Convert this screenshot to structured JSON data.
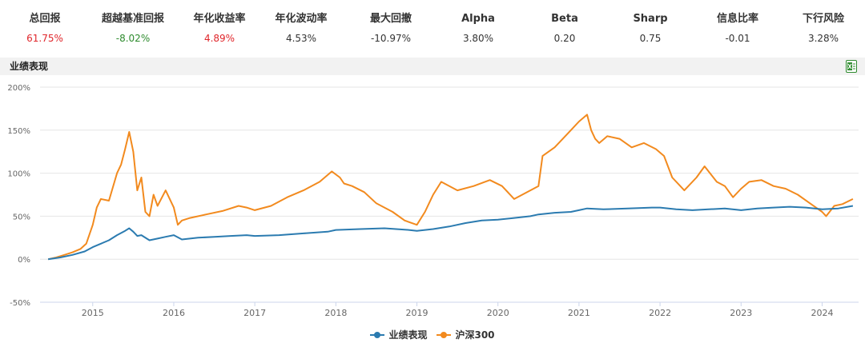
{
  "metrics": [
    {
      "label": "总回报",
      "value": "61.75%",
      "tone": "up"
    },
    {
      "label": "超越基准回报",
      "value": "-8.02%",
      "tone": "down"
    },
    {
      "label": "年化收益率",
      "value": "4.89%",
      "tone": "up"
    },
    {
      "label": "年化波动率",
      "value": "4.53%",
      "tone": "neutral"
    },
    {
      "label": "最大回撤",
      "value": "-10.97%",
      "tone": "neutral"
    },
    {
      "label": "Alpha",
      "value": "3.80%",
      "tone": "neutral"
    },
    {
      "label": "Beta",
      "value": "0.20",
      "tone": "neutral"
    },
    {
      "label": "Sharp",
      "value": "0.75",
      "tone": "neutral"
    },
    {
      "label": "信息比率",
      "value": "-0.01",
      "tone": "neutral"
    },
    {
      "label": "下行风险",
      "value": "3.28%",
      "tone": "neutral"
    }
  ],
  "section": {
    "title": "业绩表现",
    "export_icon": "excel-export-icon"
  },
  "colors": {
    "up": "#e0262b",
    "down": "#2e8b2e",
    "fund": "#2b7bb0",
    "benchmark": "#f28a1e",
    "grid": "#e6e6e6"
  },
  "chart_data": {
    "type": "line",
    "ylim": [
      -50,
      200
    ],
    "yticks": [
      -50,
      0,
      50,
      100,
      150,
      200
    ],
    "ytick_labels": [
      "-50%",
      "0%",
      "50%",
      "100%",
      "150%",
      "200%"
    ],
    "xlim": [
      2014.35,
      2024.45
    ],
    "xticks": [
      2015,
      2016,
      2017,
      2018,
      2019,
      2020,
      2021,
      2022,
      2023,
      2024
    ],
    "xtick_labels": [
      "2015",
      "2016",
      "2017",
      "2018",
      "2019",
      "2020",
      "2021",
      "2022",
      "2023",
      "2024"
    ],
    "grid": true,
    "legend_position": "bottom-center",
    "series": [
      {
        "name": "业绩表现",
        "color": "#2b7bb0",
        "x": [
          2014.45,
          2014.6,
          2014.75,
          2014.9,
          2015.0,
          2015.1,
          2015.2,
          2015.3,
          2015.4,
          2015.45,
          2015.5,
          2015.55,
          2015.6,
          2015.7,
          2015.8,
          2015.9,
          2016.0,
          2016.1,
          2016.3,
          2016.5,
          2016.7,
          2016.9,
          2017.0,
          2017.3,
          2017.6,
          2017.9,
          2018.0,
          2018.3,
          2018.6,
          2018.9,
          2019.0,
          2019.2,
          2019.4,
          2019.6,
          2019.8,
          2020.0,
          2020.2,
          2020.4,
          2020.5,
          2020.7,
          2020.9,
          2021.0,
          2021.1,
          2021.3,
          2021.6,
          2021.9,
          2022.0,
          2022.2,
          2022.4,
          2022.6,
          2022.8,
          2023.0,
          2023.2,
          2023.4,
          2023.6,
          2023.8,
          2024.0,
          2024.2,
          2024.38
        ],
        "y": [
          0,
          2,
          5,
          9,
          14,
          18,
          22,
          28,
          33,
          36,
          32,
          27,
          28,
          22,
          24,
          26,
          28,
          23,
          25,
          26,
          27,
          28,
          27,
          28,
          30,
          32,
          34,
          35,
          36,
          34,
          33,
          35,
          38,
          42,
          45,
          46,
          48,
          50,
          52,
          54,
          55,
          57,
          59,
          58,
          59,
          60,
          60,
          58,
          57,
          58,
          59,
          57,
          59,
          60,
          61,
          60,
          58,
          59,
          62
        ]
      },
      {
        "name": "沪深300",
        "color": "#f28a1e",
        "x": [
          2014.45,
          2014.55,
          2014.65,
          2014.75,
          2014.85,
          2014.92,
          2015.0,
          2015.05,
          2015.1,
          2015.2,
          2015.3,
          2015.35,
          2015.4,
          2015.45,
          2015.5,
          2015.55,
          2015.6,
          2015.65,
          2015.7,
          2015.75,
          2015.8,
          2015.9,
          2016.0,
          2016.05,
          2016.1,
          2016.2,
          2016.4,
          2016.6,
          2016.8,
          2016.9,
          2017.0,
          2017.2,
          2017.4,
          2017.6,
          2017.8,
          2017.95,
          2018.05,
          2018.1,
          2018.2,
          2018.35,
          2018.5,
          2018.7,
          2018.85,
          2019.0,
          2019.1,
          2019.2,
          2019.3,
          2019.5,
          2019.7,
          2019.9,
          2020.05,
          2020.2,
          2020.4,
          2020.5,
          2020.55,
          2020.7,
          2020.8,
          2020.9,
          2021.0,
          2021.1,
          2021.15,
          2021.2,
          2021.25,
          2021.35,
          2021.5,
          2021.65,
          2021.8,
          2021.95,
          2022.05,
          2022.15,
          2022.3,
          2022.45,
          2022.55,
          2022.7,
          2022.8,
          2022.9,
          2023.0,
          2023.1,
          2023.25,
          2023.4,
          2023.55,
          2023.7,
          2023.85,
          2024.0,
          2024.05,
          2024.15,
          2024.25,
          2024.38
        ],
        "y": [
          0,
          2,
          5,
          8,
          12,
          18,
          40,
          60,
          70,
          68,
          100,
          110,
          128,
          148,
          125,
          80,
          95,
          55,
          50,
          75,
          62,
          80,
          60,
          40,
          45,
          48,
          52,
          56,
          62,
          60,
          57,
          62,
          72,
          80,
          90,
          102,
          95,
          88,
          85,
          78,
          65,
          55,
          45,
          40,
          55,
          75,
          90,
          80,
          85,
          92,
          85,
          70,
          80,
          85,
          120,
          130,
          140,
          150,
          160,
          168,
          150,
          140,
          135,
          143,
          140,
          130,
          135,
          128,
          120,
          95,
          80,
          95,
          108,
          90,
          85,
          72,
          82,
          90,
          92,
          85,
          82,
          75,
          65,
          55,
          50,
          62,
          64,
          70
        ]
      }
    ]
  }
}
